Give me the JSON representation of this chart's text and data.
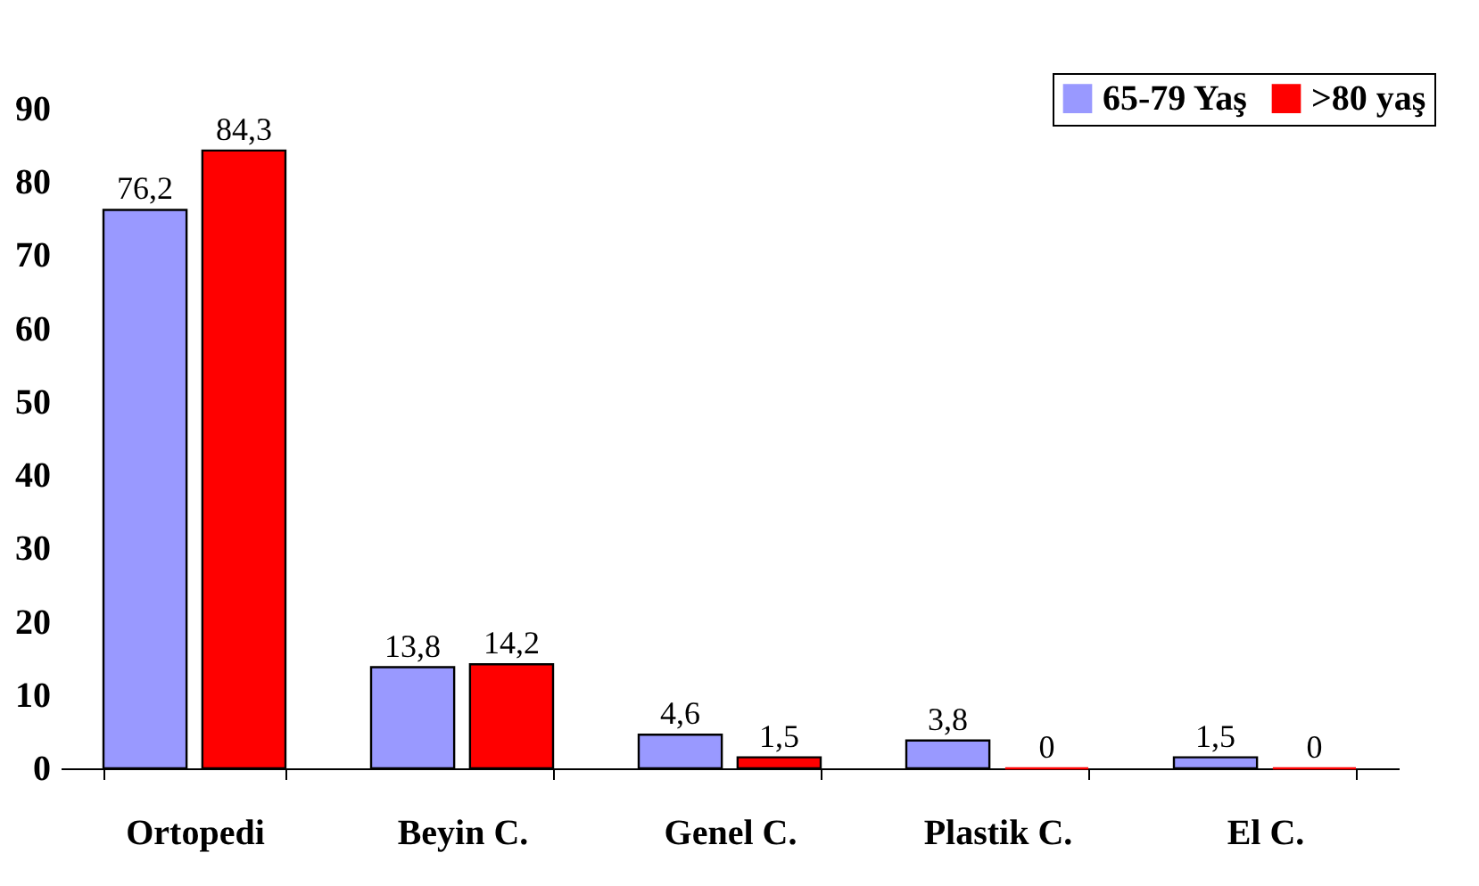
{
  "chart_data": {
    "type": "bar",
    "categories": [
      "Ortopedi",
      "Beyin C.",
      "Genel C.",
      "Plastik C.",
      "El C."
    ],
    "series": [
      {
        "name": "65-79 Yaş",
        "color": "#9999ff",
        "values": [
          76.2,
          13.8,
          4.6,
          3.8,
          1.5
        ],
        "value_labels": [
          "76,2",
          "13,8",
          "4,6",
          "3,8",
          "1,5"
        ]
      },
      {
        "name": ">80 yaş",
        "color": "#ff0000",
        "values": [
          84.3,
          14.2,
          1.5,
          0,
          0
        ],
        "value_labels": [
          "84,3",
          "14,2",
          "1,5",
          "0",
          "0"
        ]
      }
    ],
    "ylim": [
      0,
      90
    ],
    "yticks": [
      0,
      10,
      20,
      30,
      40,
      50,
      60,
      70,
      80,
      90
    ],
    "grid": false,
    "legend": "top right"
  }
}
